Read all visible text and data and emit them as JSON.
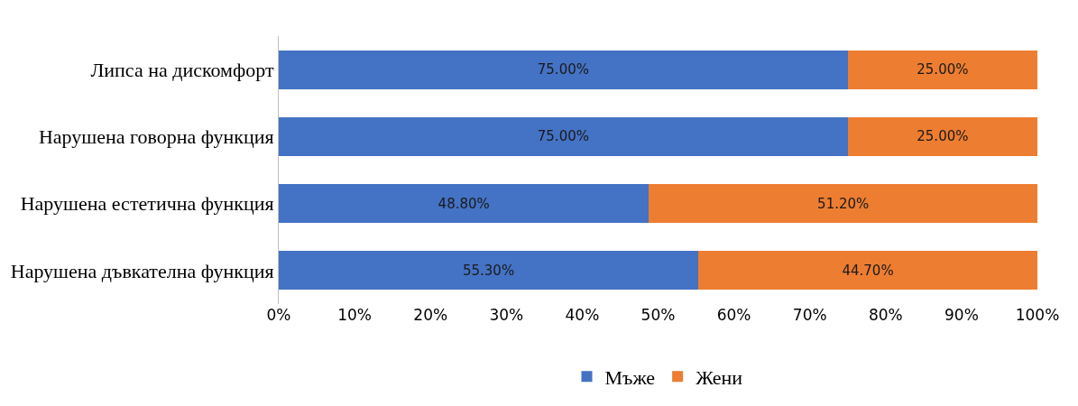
{
  "chart_data": {
    "type": "bar",
    "orientation": "horizontal",
    "stacked": true,
    "categories": [
      "Липса на дискомфорт",
      "Нарушена говорна функция",
      "Нарушена естетична функция",
      "Нарушена дъвкателна функция"
    ],
    "series": [
      {
        "name": "Мъже",
        "color": "#4472c4",
        "values": [
          75,
          75,
          48.8,
          55.3
        ],
        "value_labels": [
          "75.00%",
          "75.00%",
          "48.80%",
          "55.30%"
        ]
      },
      {
        "name": "Жени",
        "color": "#ed7d31",
        "values": [
          25,
          25,
          51.2,
          44.7
        ],
        "value_labels": [
          "25.00%",
          "25.00%",
          "51.20%",
          "44.70%"
        ]
      }
    ],
    "xlim": [
      0,
      100
    ],
    "xticks": [
      {
        "value": 0,
        "label": "0%"
      },
      {
        "value": 10,
        "label": "10%"
      },
      {
        "value": 20,
        "label": "20%"
      },
      {
        "value": 30,
        "label": "30%"
      },
      {
        "value": 40,
        "label": "40%"
      },
      {
        "value": 50,
        "label": "50%"
      },
      {
        "value": 60,
        "label": "60%"
      },
      {
        "value": 70,
        "label": "70%"
      },
      {
        "value": 80,
        "label": "80%"
      },
      {
        "value": 90,
        "label": "90%"
      },
      {
        "value": 100,
        "label": "100%"
      }
    ],
    "grid": false,
    "legend": "bottom"
  }
}
